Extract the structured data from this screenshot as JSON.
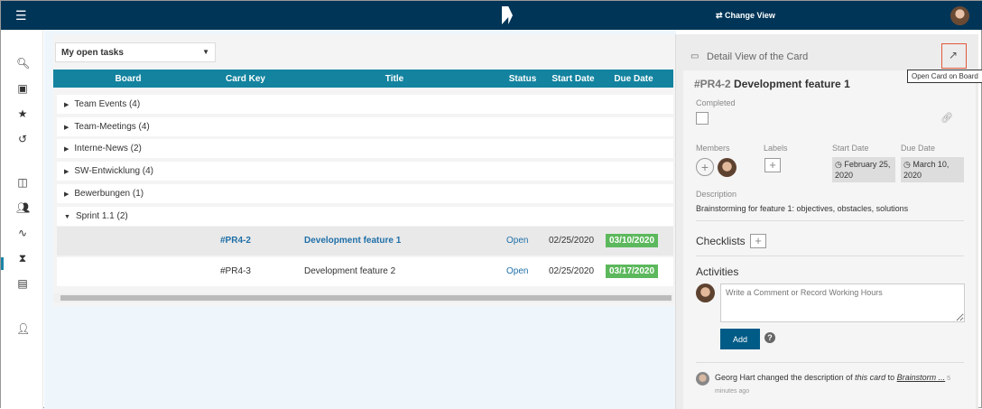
{
  "header": {
    "change_view": "⇄ Change View"
  },
  "filter": {
    "selected": "My open tasks"
  },
  "table": {
    "columns": [
      "Board",
      "Card Key",
      "Title",
      "Status",
      "Start Date",
      "Due Date"
    ],
    "groups": [
      "Team Events (4)",
      "Team-Meetings (4)",
      "Interne-News (2)",
      "SW-Entwicklung (4)",
      "Bewerbungen (1)",
      "Sprint 1.1 (2)"
    ],
    "rows": [
      {
        "key": "#PR4-2",
        "title": "Development feature 1",
        "status": "Open",
        "start": "02/25/2020",
        "due": "03/10/2020"
      },
      {
        "key": "#PR4-3",
        "title": "Development feature 2",
        "status": "Open",
        "start": "02/25/2020",
        "due": "03/17/2020"
      }
    ]
  },
  "panel": {
    "title": "Detail View of the Card",
    "tooltip": "Open Card on Board",
    "card_key": "#PR4-2",
    "card_title": "Development feature 1",
    "completed_label": "Completed",
    "members_label": "Members",
    "labels_label": "Labels",
    "start_label": "Start Date",
    "due_label": "Due Date",
    "start_date": "February 25, 2020",
    "due_date": "March 10, 2020",
    "description_label": "Description",
    "description": "Brainstorming for feature 1: objectives, obstacles, solutions",
    "checklists": "Checklists",
    "activities": "Activities",
    "comment_placeholder": "Write a Comment or Record Working Hours",
    "add": "Add",
    "activity": {
      "user": "Georg Hart",
      "text1": " changed the description of ",
      "italic": "this card",
      "text2": " to ",
      "link": "Brainstorm ...",
      "time": " 5 minutes ago"
    }
  },
  "colors": {
    "header": "#003557",
    "table_header": "#13839f",
    "due_badge": "#5cb85c",
    "add_button": "#005b87",
    "highlight": "#e2573a"
  }
}
